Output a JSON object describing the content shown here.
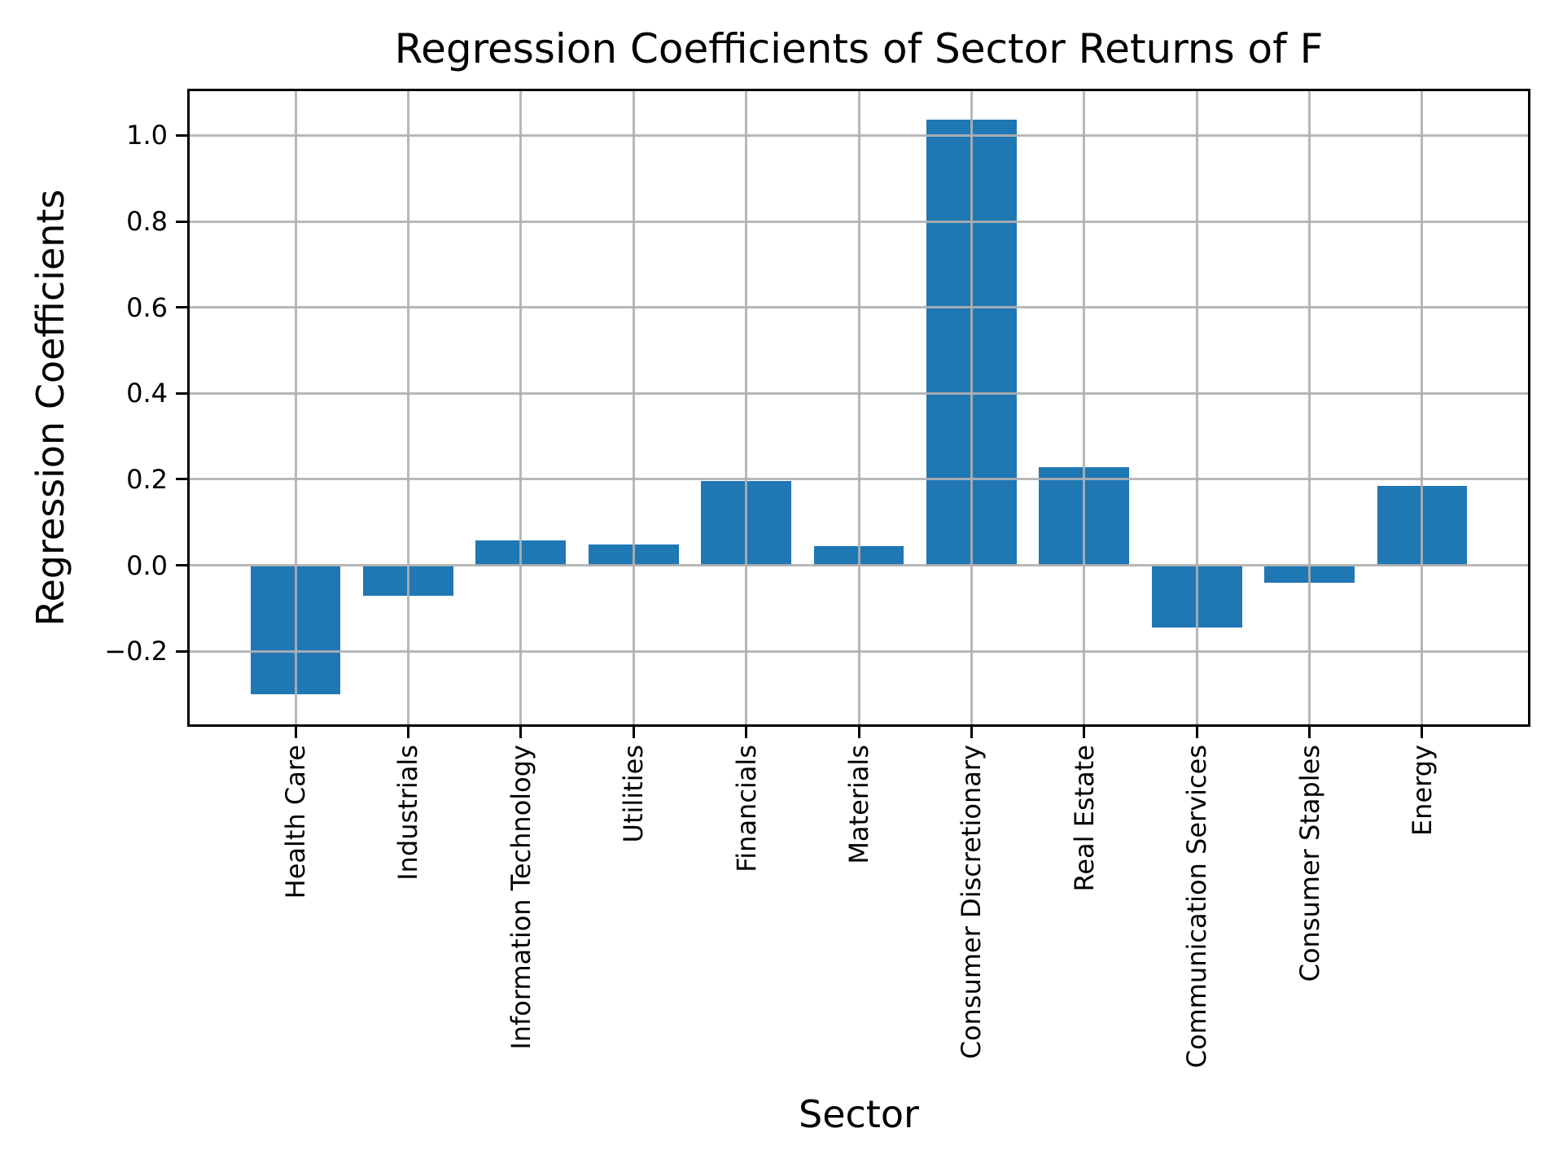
{
  "chart_data": {
    "type": "bar",
    "title": "Regression Coefficients of Sector Returns of F",
    "xlabel": "Sector",
    "ylabel": "Regression Coefficients",
    "categories": [
      "Health Care",
      "Industrials",
      "Information Technology",
      "Utilities",
      "Financials",
      "Materials",
      "Consumer Discretionary",
      "Real Estate",
      "Communication Services",
      "Consumer Staples",
      "Energy"
    ],
    "values": [
      -0.3,
      -0.07,
      0.058,
      0.048,
      0.196,
      0.045,
      1.037,
      0.228,
      -0.144,
      -0.041,
      0.185
    ],
    "yticks": [
      {
        "label": "1.0",
        "value": 1.0
      },
      {
        "label": "0.8",
        "value": 0.8
      },
      {
        "label": "0.6",
        "value": 0.6
      },
      {
        "label": "0.4",
        "value": 0.4
      },
      {
        "label": "0.2",
        "value": 0.2
      },
      {
        "label": "0.0",
        "value": 0.0
      },
      {
        "label": "−0.2",
        "value": -0.2
      }
    ],
    "ylim": [
      -0.37,
      1.103
    ],
    "xlim": [
      -0.94,
      10.94
    ],
    "bar_width_units": 0.8,
    "bar_color": "#1f77b4",
    "grid": true,
    "grid_on_top": true,
    "grid_color": "#b0b0b0",
    "axis_color": "#000000",
    "background_color": "#ffffff",
    "legend": null
  }
}
